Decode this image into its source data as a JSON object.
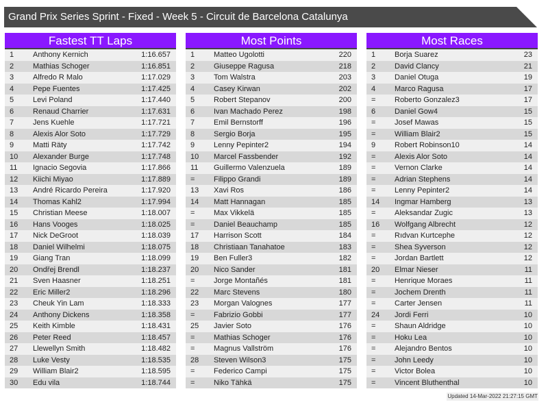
{
  "title": "Grand Prix Series Sprint - Fixed - Week 5 - Circuit de Barcelona Catalunya",
  "colors": {
    "header": "#8a18ff",
    "titlebar": "#4a4a4a"
  },
  "tables": [
    {
      "title": "Fastest TT Laps",
      "rows": [
        [
          "1",
          "Anthony Kernich",
          "1:16.657"
        ],
        [
          "2",
          "Mathias Schoger",
          "1:16.851"
        ],
        [
          "3",
          "Alfredo R Malo",
          "1:17.029"
        ],
        [
          "4",
          "Pepe Fuentes",
          "1:17.425"
        ],
        [
          "5",
          "Levi Poland",
          "1:17.440"
        ],
        [
          "6",
          "Renaud Charrier",
          "1:17.631"
        ],
        [
          "7",
          "Jens Kuehle",
          "1:17.721"
        ],
        [
          "8",
          "Alexis Alor Soto",
          "1:17.729"
        ],
        [
          "9",
          "Matti Räty",
          "1:17.742"
        ],
        [
          "10",
          "Alexander Burge",
          "1:17.748"
        ],
        [
          "11",
          "Ignacio Segovia",
          "1:17.866"
        ],
        [
          "12",
          "Kiichi Miyao",
          "1:17.889"
        ],
        [
          "13",
          "André Ricardo Pereira",
          "1:17.920"
        ],
        [
          "14",
          "Thomas Kahl2",
          "1:17.994"
        ],
        [
          "15",
          "Christian Meese",
          "1:18.007"
        ],
        [
          "16",
          "Hans Vooges",
          "1:18.025"
        ],
        [
          "17",
          "Nick DeGroot",
          "1:18.039"
        ],
        [
          "18",
          "Daniel Wilhelmi",
          "1:18.075"
        ],
        [
          "19",
          "Giang Tran",
          "1:18.099"
        ],
        [
          "20",
          "Ondřej Brendl",
          "1:18.237"
        ],
        [
          "21",
          "Sven Haasner",
          "1:18.251"
        ],
        [
          "22",
          "Eric Miller2",
          "1:18.296"
        ],
        [
          "23",
          "Cheuk Yin Lam",
          "1:18.333"
        ],
        [
          "24",
          "Anthony Dickens",
          "1:18.358"
        ],
        [
          "25",
          "Keith Kimble",
          "1:18.431"
        ],
        [
          "26",
          "Peter Reed",
          "1:18.457"
        ],
        [
          "27",
          "Llewellyn Smith",
          "1:18.482"
        ],
        [
          "28",
          "Luke Vesty",
          "1:18.535"
        ],
        [
          "29",
          "William Blair2",
          "1:18.595"
        ],
        [
          "30",
          "Edu vila",
          "1:18.744"
        ]
      ]
    },
    {
      "title": "Most Points",
      "rows": [
        [
          "1",
          "Matteo Ugolotti",
          "220"
        ],
        [
          "2",
          "Giuseppe Ragusa",
          "218"
        ],
        [
          "3",
          "Tom Walstra",
          "203"
        ],
        [
          "4",
          "Casey Kirwan",
          "202"
        ],
        [
          "5",
          "Robert Stepanov",
          "200"
        ],
        [
          "6",
          "Ivan Machado Perez",
          "198"
        ],
        [
          "7",
          "Emil Bernstorff",
          "196"
        ],
        [
          "8",
          "Sergio Borja",
          "195"
        ],
        [
          "9",
          "Lenny Pepinter2",
          "194"
        ],
        [
          "10",
          "Marcel Fassbender",
          "192"
        ],
        [
          "11",
          "Guillermo Valenzuela",
          "189"
        ],
        [
          "=",
          "Filippo Grandi",
          "189"
        ],
        [
          "13",
          "Xavi Ros",
          "186"
        ],
        [
          "14",
          "Matt Hannagan",
          "185"
        ],
        [
          "=",
          "Max Vikkelä",
          "185"
        ],
        [
          "=",
          "Daniel Beauchamp",
          "185"
        ],
        [
          "17",
          "Harrison Scott",
          "184"
        ],
        [
          "18",
          "Christiaan Tanahatoe",
          "183"
        ],
        [
          "19",
          "Ben Fuller3",
          "182"
        ],
        [
          "20",
          "Nico Sander",
          "181"
        ],
        [
          "=",
          "Jorge Montañés",
          "181"
        ],
        [
          "22",
          "Marc Stevens",
          "180"
        ],
        [
          "23",
          "Morgan Valognes",
          "177"
        ],
        [
          "=",
          "Fabrizio Gobbi",
          "177"
        ],
        [
          "25",
          "Javier Soto",
          "176"
        ],
        [
          "=",
          "Mathias Schoger",
          "176"
        ],
        [
          "=",
          "Magnus Vallström",
          "176"
        ],
        [
          "28",
          "Steven Wilson3",
          "175"
        ],
        [
          "=",
          "Federico Campi",
          "175"
        ],
        [
          "=",
          "Niko Tähkä",
          "175"
        ]
      ]
    },
    {
      "title": "Most Races",
      "rows": [
        [
          "1",
          "Borja Suarez",
          "23"
        ],
        [
          "2",
          "David Clancy",
          "21"
        ],
        [
          "3",
          "Daniel Otuga",
          "19"
        ],
        [
          "4",
          "Marco Ragusa",
          "17"
        ],
        [
          "=",
          "Roberto Gonzalez3",
          "17"
        ],
        [
          "6",
          "Daniel Gow4",
          "15"
        ],
        [
          "=",
          "Josef Mawas",
          "15"
        ],
        [
          "=",
          "William Blair2",
          "15"
        ],
        [
          "9",
          "Robert Robinson10",
          "14"
        ],
        [
          "=",
          "Alexis Alor Soto",
          "14"
        ],
        [
          "=",
          "Vernon Clarke",
          "14"
        ],
        [
          "=",
          "Adrian Stephens",
          "14"
        ],
        [
          "=",
          "Lenny Pepinter2",
          "14"
        ],
        [
          "14",
          "Ingmar Hamberg",
          "13"
        ],
        [
          "=",
          "Aleksandar Zugic",
          "13"
        ],
        [
          "16",
          "Wolfgang Albrecht",
          "12"
        ],
        [
          "=",
          "Rıdvan Kurtcephe",
          "12"
        ],
        [
          "=",
          "Shea Syverson",
          "12"
        ],
        [
          "=",
          "Jordan Bartlett",
          "12"
        ],
        [
          "20",
          "Elmar Nieser",
          "11"
        ],
        [
          "=",
          "Henrique Moraes",
          "11"
        ],
        [
          "=",
          "Jochem Drenth",
          "11"
        ],
        [
          "=",
          "Carter Jensen",
          "11"
        ],
        [
          "24",
          "Jordi Ferri",
          "10"
        ],
        [
          "=",
          "Shaun Aldridge",
          "10"
        ],
        [
          "=",
          "Hoku Lea",
          "10"
        ],
        [
          "=",
          "Alejandro Bentos",
          "10"
        ],
        [
          "=",
          "John Leedy",
          "10"
        ],
        [
          "=",
          "Victor Bolea",
          "10"
        ],
        [
          "=",
          "Vincent Bluthenthal",
          "10"
        ]
      ]
    }
  ],
  "footer": "Updated 14-Mar-2022 21:27:15 GMT"
}
